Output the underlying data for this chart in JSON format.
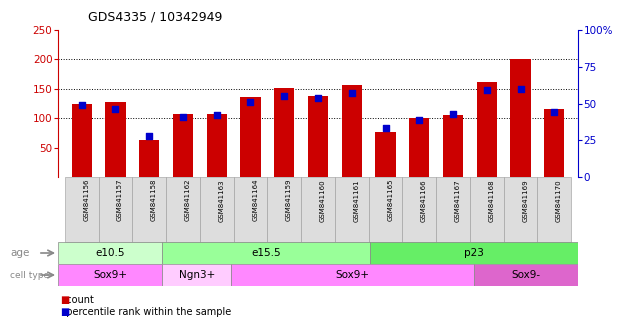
{
  "title": "GDS4335 / 10342949",
  "samples": [
    "GSM841156",
    "GSM841157",
    "GSM841158",
    "GSM841162",
    "GSM841163",
    "GSM841164",
    "GSM841159",
    "GSM841160",
    "GSM841161",
    "GSM841165",
    "GSM841166",
    "GSM841167",
    "GSM841168",
    "GSM841169",
    "GSM841170"
  ],
  "counts": [
    125,
    127,
    63,
    107,
    107,
    136,
    151,
    137,
    156,
    76,
    101,
    105,
    161,
    200,
    116
  ],
  "percentile_ranks": [
    49,
    46,
    28,
    41,
    42,
    51,
    55,
    54,
    57,
    33,
    39,
    43,
    59,
    60,
    44
  ],
  "ylim_left": [
    0,
    250
  ],
  "ylim_right": [
    0,
    100
  ],
  "yticks_left": [
    50,
    100,
    150,
    200,
    250
  ],
  "yticks_right": [
    0,
    25,
    50,
    75,
    100
  ],
  "ytick_labels_right": [
    "0",
    "25",
    "50",
    "75",
    "100%"
  ],
  "age_groups": [
    {
      "label": "e10.5",
      "start": 0,
      "end": 3,
      "color": "#ccffcc"
    },
    {
      "label": "e15.5",
      "start": 3,
      "end": 9,
      "color": "#99ff99"
    },
    {
      "label": "p23",
      "start": 9,
      "end": 15,
      "color": "#66ee66"
    }
  ],
  "cell_type_groups": [
    {
      "label": "Sox9+",
      "start": 0,
      "end": 3,
      "color": "#ff88ff"
    },
    {
      "label": "Ngn3+",
      "start": 3,
      "end": 5,
      "color": "#ffccff"
    },
    {
      "label": "Sox9+",
      "start": 5,
      "end": 12,
      "color": "#ff88ff"
    },
    {
      "label": "Sox9-",
      "start": 12,
      "end": 15,
      "color": "#dd66cc"
    }
  ],
  "bar_color": "#cc0000",
  "dot_color": "#0000cc",
  "grid_color": "#000000",
  "xticklabel_bg": "#dddddd",
  "left_axis_color": "#cc0000",
  "right_axis_color": "#0000cc",
  "right_ytick_labels": [
    "0",
    "25",
    "50",
    "75",
    "100%"
  ]
}
